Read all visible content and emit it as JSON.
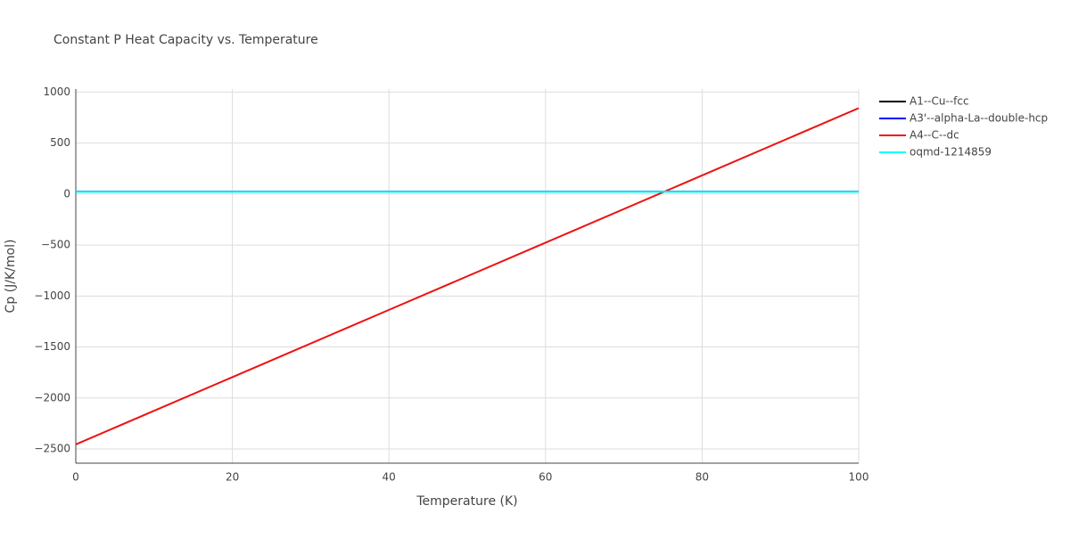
{
  "chart_data": {
    "type": "line",
    "title": "Constant P Heat Capacity vs. Temperature",
    "x_label": "Temperature (K)",
    "y_label": "Cp (J/K/mol)",
    "x": [
      0,
      20,
      40,
      60,
      80,
      100
    ],
    "series": [
      {
        "name": "A1--Cu--fcc",
        "color": "#000000",
        "values": [
          24,
          24,
          24,
          24,
          24,
          24
        ]
      },
      {
        "name": "A3'--alpha-La--double-hcp",
        "color": "#0000ff",
        "values": [
          25,
          25,
          25,
          25,
          25,
          25
        ]
      },
      {
        "name": "A4--C--dc",
        "color": "#ee1111",
        "values": [
          -2456,
          -1796,
          -1136,
          -477,
          183,
          843
        ]
      },
      {
        "name": "oqmd-1214859",
        "color": "#00ffff",
        "values": [
          23,
          23,
          23,
          23,
          23,
          23
        ]
      }
    ],
    "xlim": [
      0,
      100
    ],
    "xticks": [
      0,
      20,
      40,
      60,
      80,
      100
    ],
    "ylim": [
      -2640,
      1030
    ],
    "yticks": [
      {
        "value": -2500,
        "label": "−2500"
      },
      {
        "value": -2000,
        "label": "−2000"
      },
      {
        "value": -1500,
        "label": "−1500"
      },
      {
        "value": -1000,
        "label": "−1000"
      },
      {
        "value": -500,
        "label": "−500"
      },
      0,
      500,
      1000
    ],
    "grid": true,
    "legend": "right"
  }
}
